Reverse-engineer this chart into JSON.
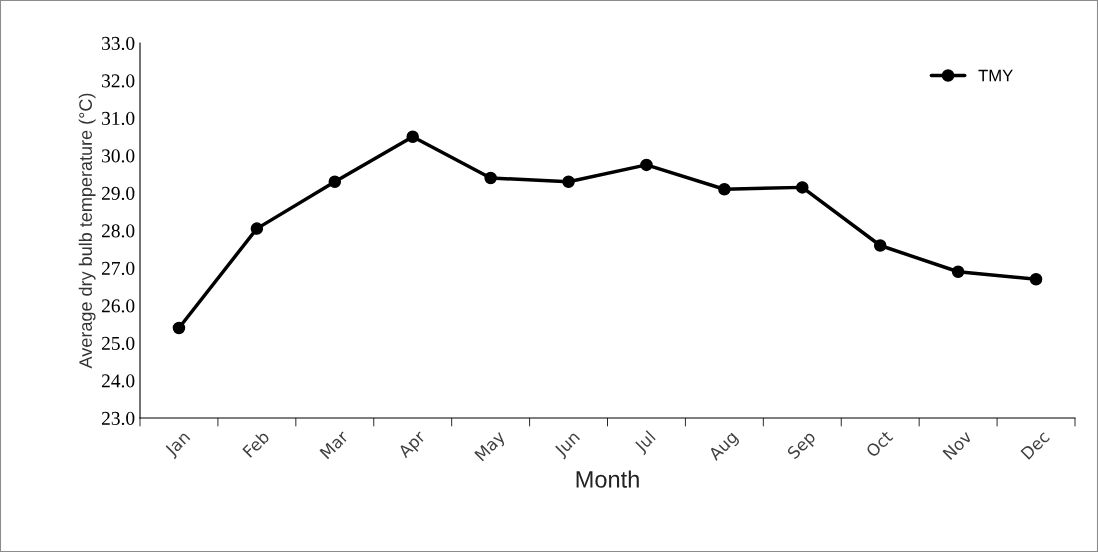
{
  "chart_data": {
    "type": "line",
    "xlabel": "Month",
    "ylabel": "Average dry bulb temperature (°C)",
    "categories": [
      "Jan",
      "Feb",
      "Mar",
      "Apr",
      "May",
      "Jun",
      "Jul",
      "Aug",
      "Sep",
      "Oct",
      "Nov",
      "Dec"
    ],
    "series": [
      {
        "name": "TMY",
        "color": "#000000",
        "values": [
          25.4,
          28.05,
          29.3,
          30.5,
          29.4,
          29.3,
          29.75,
          29.1,
          29.15,
          27.6,
          26.9,
          26.7
        ]
      }
    ],
    "ylim": [
      23,
      33
    ],
    "yticks": [
      {
        "value": 23,
        "label": "23.0"
      },
      {
        "value": 24,
        "label": "24.0"
      },
      {
        "value": 25,
        "label": "25.0"
      },
      {
        "value": 26,
        "label": "26.0"
      },
      {
        "value": 27,
        "label": "27.0"
      },
      {
        "value": 28,
        "label": "28.0"
      },
      {
        "value": 29,
        "label": "29.0"
      },
      {
        "value": 30,
        "label": "30.0"
      },
      {
        "value": 31,
        "label": "31.0"
      },
      {
        "value": 32,
        "label": "32.0"
      },
      {
        "value": 33,
        "label": "33.0"
      }
    ],
    "marker": "circle",
    "line_style": "solid",
    "legend": "top right",
    "grid": false
  }
}
